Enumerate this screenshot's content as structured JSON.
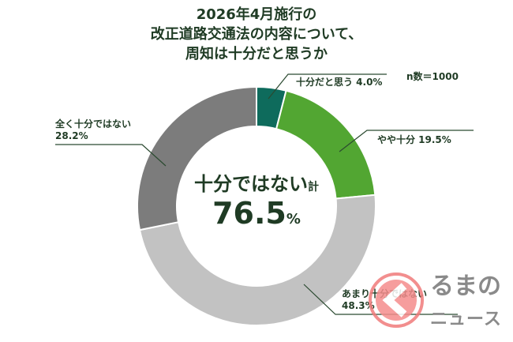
{
  "chart_data": {
    "type": "pie",
    "donut": true,
    "title": [
      "2026年4月施行の",
      "改正道路交通法の内容について、",
      "周知は十分だと思うか"
    ],
    "note": "n数＝1000",
    "slices": [
      {
        "label": "十分だと思う",
        "value": 4.0,
        "display": "十分だと思う 4.0%",
        "color": "#0e6b5c"
      },
      {
        "label": "やや十分",
        "value": 19.5,
        "display": "やや十分 19.5%",
        "color": "#52a632"
      },
      {
        "label": "あまり十分ではない",
        "value": 48.3,
        "display": "48.3%",
        "color": "#c2c2c2"
      },
      {
        "label": "全く十分ではない",
        "value": 28.2,
        "display": "28.2%",
        "color": "#7c7c7c"
      }
    ],
    "center": {
      "label": "十分ではない",
      "suffix": "計",
      "value": "76.5",
      "unit": "%"
    }
  },
  "watermark": {
    "line1": "るまの",
    "line2": "ニュース"
  }
}
